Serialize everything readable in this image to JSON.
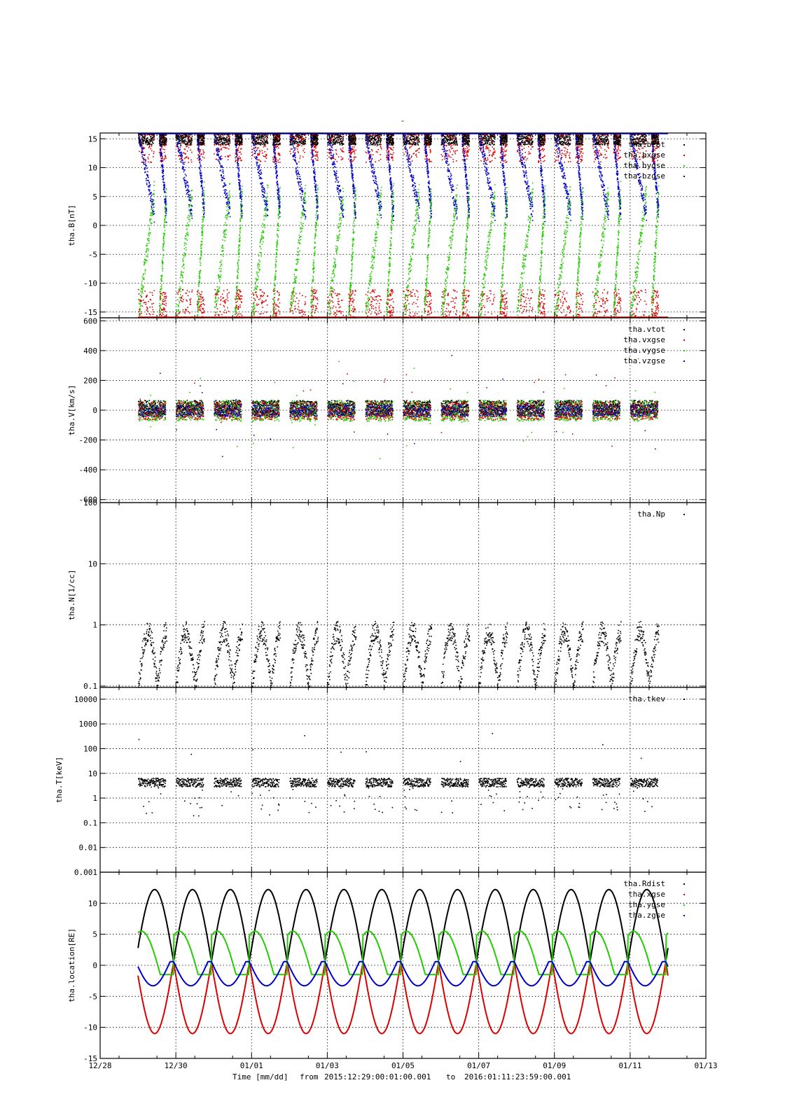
{
  "title": "-",
  "footer": {
    "time_label": "Time [mm/dd]",
    "from_label": "from",
    "from_value": "2015:12:29:00:01:00.001",
    "to_label": "to",
    "to_value": "2016:01:11:23:59:00.001"
  },
  "x_axis": {
    "range_days": [
      0,
      16
    ],
    "ticks": [
      {
        "day": 0,
        "label": "12/28"
      },
      {
        "day": 2,
        "label": "12/30"
      },
      {
        "day": 4,
        "label": "01/01"
      },
      {
        "day": 6,
        "label": "01/03"
      },
      {
        "day": 8,
        "label": "01/05"
      },
      {
        "day": 10,
        "label": "01/07"
      },
      {
        "day": 12,
        "label": "01/09"
      },
      {
        "day": 14,
        "label": "01/11"
      },
      {
        "day": 16,
        "label": "01/13"
      }
    ]
  },
  "colors": {
    "black": "#000000",
    "red": "#dd0000",
    "green": "#22cc00",
    "blue": "#0000cc"
  },
  "chart_data": [
    {
      "type": "scatter",
      "ylabel": "tha.B[nT]",
      "scale": "linear",
      "ylim": [
        -16,
        16
      ],
      "yticks": [
        {
          "v": 15,
          "label": "15"
        },
        {
          "v": 10,
          "label": "10"
        },
        {
          "v": 5,
          "label": "5"
        },
        {
          "v": 0,
          "label": "0"
        },
        {
          "v": -5,
          "label": "-5"
        },
        {
          "v": -10,
          "label": "-10"
        },
        {
          "v": -15,
          "label": "-15"
        }
      ],
      "series": [
        {
          "name": "tha.btot",
          "color": "#000000"
        },
        {
          "name": "tha.bxgse",
          "color": "#dd0000"
        },
        {
          "name": "tha.bygse",
          "color": "#22cc00"
        },
        {
          "name": "tha.bzgse",
          "color": "#0000cc"
        }
      ]
    },
    {
      "type": "scatter",
      "ylabel": "tha.V[km/s]",
      "scale": "linear",
      "ylim": [
        -620,
        620
      ],
      "yticks": [
        {
          "v": 600,
          "label": "600"
        },
        {
          "v": 400,
          "label": "400"
        },
        {
          "v": 200,
          "label": "200"
        },
        {
          "v": 0,
          "label": "0"
        },
        {
          "v": -200,
          "label": "-200"
        },
        {
          "v": -400,
          "label": "-400"
        },
        {
          "v": -600,
          "label": "-600"
        }
      ],
      "series": [
        {
          "name": "tha.vtot",
          "color": "#000000"
        },
        {
          "name": "tha.vxgse",
          "color": "#dd0000"
        },
        {
          "name": "tha.vygse",
          "color": "#22cc00"
        },
        {
          "name": "tha.vzgse",
          "color": "#0000cc"
        }
      ]
    },
    {
      "type": "scatter",
      "ylabel": "tha.N[1/cc]",
      "scale": "log",
      "ylim": [
        0.095,
        100
      ],
      "yticks": [
        {
          "v": 100,
          "label": "100"
        },
        {
          "v": 10,
          "label": "10"
        },
        {
          "v": 1,
          "label": "1"
        },
        {
          "v": 0.1,
          "label": "0.1"
        }
      ],
      "series": [
        {
          "name": "tha.Np",
          "color": "#000000"
        }
      ]
    },
    {
      "type": "scatter",
      "ylabel": "tha.T[keV]",
      "scale": "log",
      "ylim": [
        0.001,
        30000
      ],
      "yticks": [
        {
          "v": 10000,
          "label": "10000"
        },
        {
          "v": 1000,
          "label": "1000"
        },
        {
          "v": 100,
          "label": "100"
        },
        {
          "v": 10,
          "label": "10"
        },
        {
          "v": 1,
          "label": "1"
        },
        {
          "v": 0.1,
          "label": "0.1"
        },
        {
          "v": 0.01,
          "label": "0.01"
        },
        {
          "v": 0.001,
          "label": "0.001"
        }
      ],
      "series": [
        {
          "name": "tha.tkev",
          "color": "#000000"
        }
      ]
    },
    {
      "type": "line",
      "ylabel": "tha.location[RE]",
      "scale": "linear",
      "ylim": [
        -15,
        15
      ],
      "yticks": [
        {
          "v": 10,
          "label": "10"
        },
        {
          "v": 5,
          "label": "5"
        },
        {
          "v": 0,
          "label": "0"
        },
        {
          "v": -5,
          "label": "-5"
        },
        {
          "v": -10,
          "label": "-10"
        },
        {
          "v": -15,
          "label": "-15"
        }
      ],
      "orbit": {
        "start_day": 1,
        "end_day": 15,
        "period_days": 1.0,
        "perigee_day": 1.94
      },
      "series": [
        {
          "name": "tha.Rdist",
          "color": "#000000",
          "min": 0.6,
          "max": 12.2
        },
        {
          "name": "tha.xgse",
          "color": "#dd0000",
          "min": -11.0,
          "max": 0.5
        },
        {
          "name": "tha.ygse",
          "color": "#22cc00",
          "min": -1.5,
          "max": 5.5
        },
        {
          "name": "tha.zgse",
          "color": "#0000cc",
          "min": -3.3,
          "max": 0.6
        }
      ]
    }
  ]
}
